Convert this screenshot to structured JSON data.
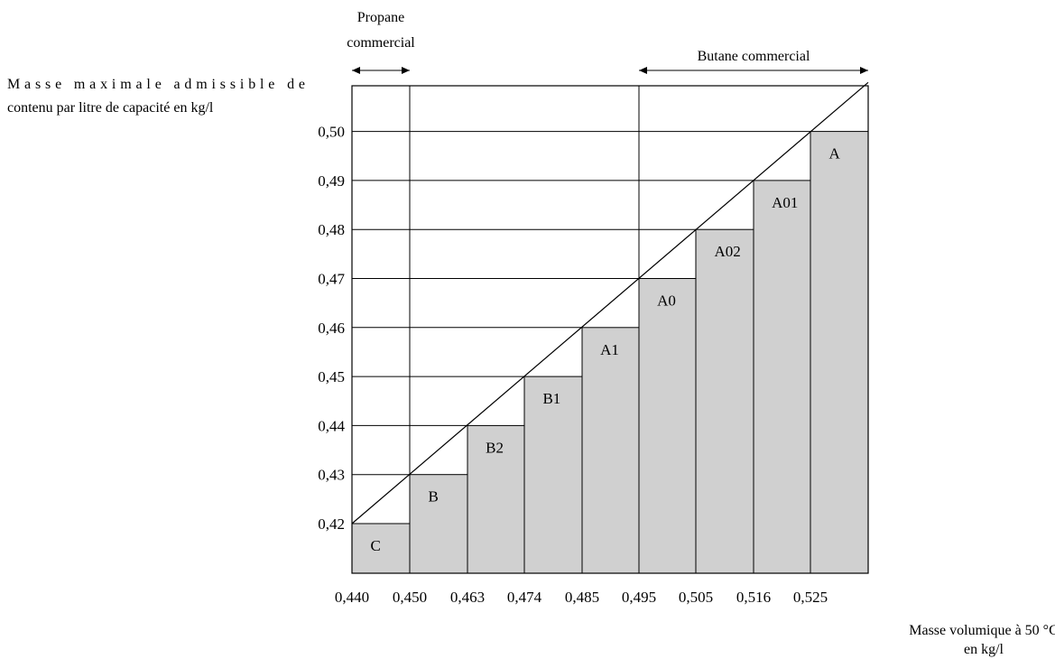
{
  "chart_data": {
    "type": "bar",
    "ylabel_lines": [
      "Masse maximale admissible de",
      "contenu par litre de capacité en kg/l"
    ],
    "xlabel_lines": [
      "Masse volumique à 50 °C",
      "en kg/l"
    ],
    "x_ticks": [
      "0,440",
      "0,450",
      "0,463",
      "0,474",
      "0,485",
      "0,495",
      "0,505",
      "0,516",
      "0,525"
    ],
    "y_ticks": [
      "0,42",
      "0,43",
      "0,44",
      "0,45",
      "0,46",
      "0,47",
      "0,48",
      "0,49",
      "0,50"
    ],
    "bars": [
      {
        "label": "C",
        "x_from": 0.44,
        "x_to": 0.45,
        "value": 0.42
      },
      {
        "label": "B",
        "x_from": 0.45,
        "x_to": 0.463,
        "value": 0.43
      },
      {
        "label": "B2",
        "x_from": 0.463,
        "x_to": 0.474,
        "value": 0.44
      },
      {
        "label": "B1",
        "x_from": 0.474,
        "x_to": 0.485,
        "value": 0.45
      },
      {
        "label": "A1",
        "x_from": 0.485,
        "x_to": 0.495,
        "value": 0.46
      },
      {
        "label": "A0",
        "x_from": 0.495,
        "x_to": 0.505,
        "value": 0.47
      },
      {
        "label": "A02",
        "x_from": 0.505,
        "x_to": 0.516,
        "value": 0.48
      },
      {
        "label": "A01",
        "x_from": 0.516,
        "x_to": 0.525,
        "value": 0.49
      },
      {
        "label": "A",
        "x_from": 0.525,
        "x_to": 0.535,
        "value": 0.5
      }
    ],
    "ranges": [
      {
        "label_lines": [
          "Propane",
          "commercial"
        ],
        "x_from": 0.44,
        "x_to": 0.45
      },
      {
        "label_lines": [
          "Butane commercial"
        ],
        "x_from": 0.495,
        "x_to": 0.535
      }
    ],
    "diagonal": {
      "from": [
        0.44,
        0.42
      ],
      "to": [
        0.535,
        0.51
      ]
    },
    "ylim": [
      0.41,
      0.51
    ],
    "bar_color": "#d0d0d0",
    "grid": "horizontal lines at y ticks from y-axis to diagonal"
  }
}
